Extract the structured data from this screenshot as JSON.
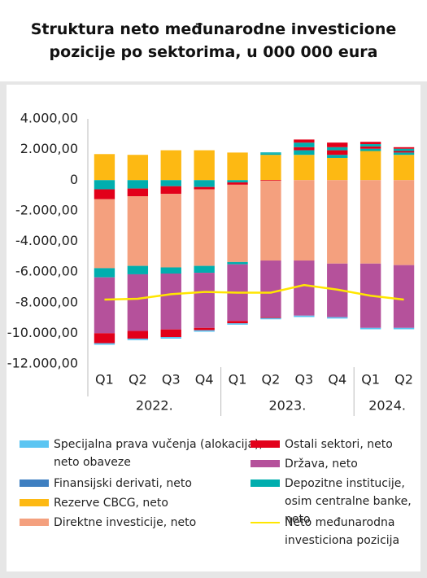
{
  "chart_data": {
    "type": "bar",
    "stacked": true,
    "title": "Struktura neto međunarodne investicione\npozicije po sektorima, u 000 000 eura",
    "categories": [
      "Q1",
      "Q2",
      "Q3",
      "Q4",
      "Q1",
      "Q2",
      "Q3",
      "Q4",
      "Q1",
      "Q2"
    ],
    "groups": [
      {
        "label": "2022.",
        "size": 4
      },
      {
        "label": "2023.",
        "size": 4
      },
      {
        "label": "2024.",
        "size": 2
      }
    ],
    "ylim": [
      -12000,
      4000
    ],
    "yticks": [
      {
        "value": 4000,
        "label": "4.000,00"
      },
      {
        "value": 2000,
        "label": "2.000,00"
      },
      0,
      {
        "value": -2000,
        "label": "-2.000,00"
      },
      {
        "value": -4000,
        "label": "-4.000,00"
      },
      {
        "value": -6000,
        "label": "-6.000,00"
      },
      {
        "value": -8000,
        "label": "-8.000,00"
      },
      {
        "value": -10000,
        "label": "-10.000,00"
      },
      {
        "value": -12000,
        "label": "-12.000,00"
      }
    ],
    "series": [
      {
        "name": "Specijalna prava vučenja (alokacija),\nneto obaveze",
        "color": "#5bc5f2",
        "values": [
          -100,
          -100,
          -100,
          -100,
          -90,
          -90,
          -90,
          -90,
          -90,
          -90
        ]
      },
      {
        "name": "Finansijski derivati, neto",
        "color": "#3e7fc1",
        "values": [
          0,
          0,
          0,
          0,
          0,
          0,
          0,
          0,
          0,
          0
        ]
      },
      {
        "name": "Rezerve CBCG, neto",
        "color": "#fdb913",
        "values": [
          1700,
          1650,
          1950,
          1950,
          1800,
          1650,
          1650,
          1450,
          1900,
          1650
        ]
      },
      {
        "name": "Direktne investicije, neto",
        "color": "#f4a07e",
        "values": [
          -4500,
          -4550,
          -4800,
          -5000,
          -5050,
          -5200,
          -5250,
          -5450,
          -5450,
          -5550
        ]
      },
      {
        "name": "Ostali sektori, neto",
        "color": "#e2001a",
        "values": [
          -650,
          -500,
          -500,
          -150,
          -150,
          -50,
          200,
          300,
          150,
          100
        ]
      },
      {
        "name": "Država, neto",
        "color": "#b5519b",
        "values": [
          -3650,
          -3700,
          -3650,
          -3600,
          -3700,
          -3700,
          -3600,
          -3500,
          -4200,
          -4100
        ]
      },
      {
        "name": "Depozitne institucije,\nosim centralne banke, neto",
        "color": "#00aeae",
        "values": [
          -600,
          -550,
          -400,
          -450,
          -150,
          80,
          300,
          200,
          150,
          150
        ]
      },
      {
        "name": "Neto međunarodna\ninvesticiona pozicija",
        "type": "line",
        "color": "#ffe600",
        "values": [
          -7800,
          -7750,
          -7450,
          -7300,
          -7350,
          -7350,
          -6850,
          -7150,
          -7550,
          -7800
        ]
      }
    ]
  }
}
